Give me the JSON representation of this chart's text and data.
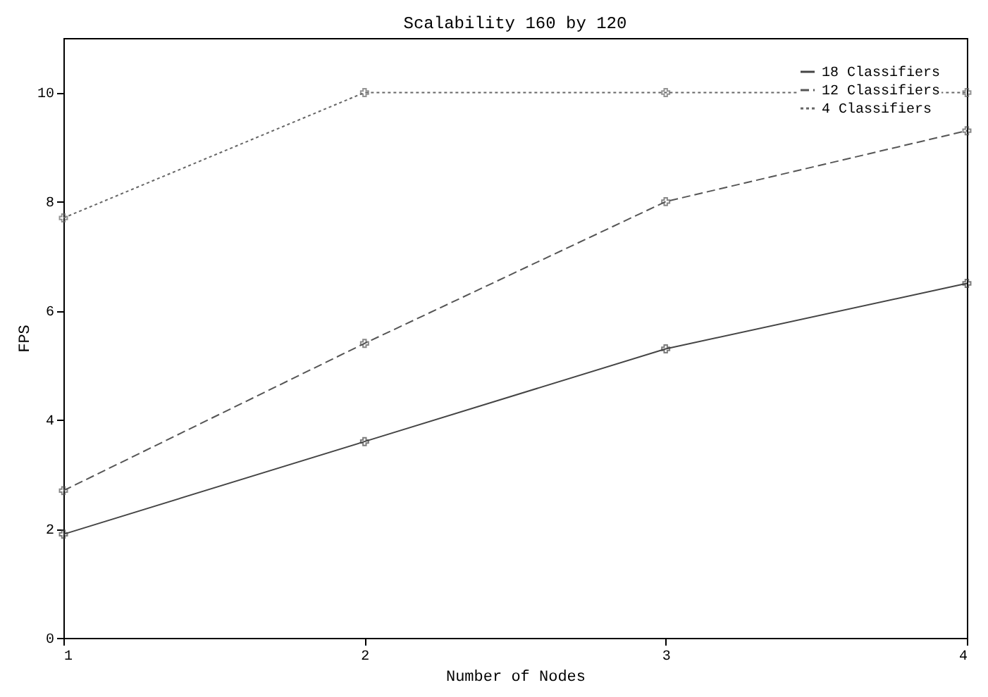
{
  "chart_data": {
    "type": "line",
    "title": "Scalability 160 by 120",
    "xlabel": "Number of Nodes",
    "ylabel": "FPS",
    "x": [
      1,
      2,
      3,
      4
    ],
    "series": [
      {
        "name": "18 Classifiers",
        "color": "#444444",
        "line_style": "solid",
        "values": [
          1.9,
          3.6,
          5.3,
          6.5
        ]
      },
      {
        "name": "12 Classifiers",
        "color": "#555555",
        "line_style": "dashed",
        "values": [
          2.7,
          5.4,
          8.0,
          9.3
        ]
      },
      {
        "name": "4 Classifiers",
        "color": "#666666",
        "line_style": "dotted",
        "values": [
          7.7,
          10,
          10,
          10
        ]
      }
    ],
    "xlim": [
      1,
      4
    ],
    "xticks": [
      1,
      2,
      3,
      4
    ],
    "ylim": [
      0,
      11
    ],
    "yticks": [
      0,
      2,
      4,
      6,
      8,
      10
    ],
    "grid": false,
    "legend": "top right",
    "marker": "cross"
  }
}
